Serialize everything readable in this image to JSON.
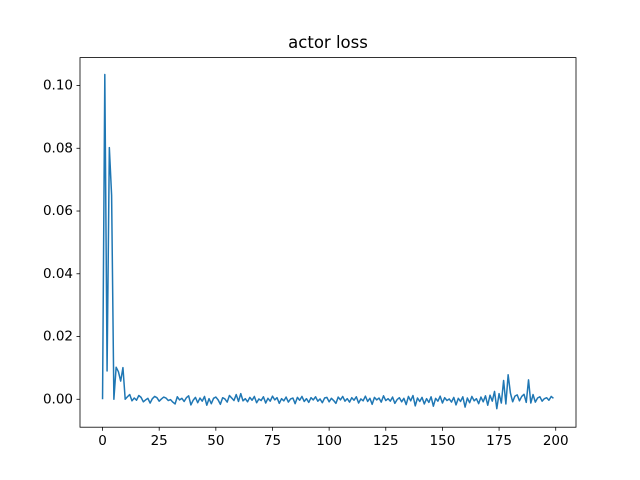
{
  "chart_data": {
    "type": "line",
    "title": "actor loss",
    "x": [
      0,
      1,
      2,
      3,
      4,
      5,
      6,
      7,
      8,
      9,
      10,
      11,
      12,
      13,
      14,
      15,
      16,
      17,
      18,
      19,
      20,
      21,
      22,
      23,
      24,
      25,
      26,
      27,
      28,
      29,
      30,
      31,
      32,
      33,
      34,
      35,
      36,
      37,
      38,
      39,
      40,
      41,
      42,
      43,
      44,
      45,
      46,
      47,
      48,
      49,
      50,
      51,
      52,
      53,
      54,
      55,
      56,
      57,
      58,
      59,
      60,
      61,
      62,
      63,
      64,
      65,
      66,
      67,
      68,
      69,
      70,
      71,
      72,
      73,
      74,
      75,
      76,
      77,
      78,
      79,
      80,
      81,
      82,
      83,
      84,
      85,
      86,
      87,
      88,
      89,
      90,
      91,
      92,
      93,
      94,
      95,
      96,
      97,
      98,
      99,
      100,
      101,
      102,
      103,
      104,
      105,
      106,
      107,
      108,
      109,
      110,
      111,
      112,
      113,
      114,
      115,
      116,
      117,
      118,
      119,
      120,
      121,
      122,
      123,
      124,
      125,
      126,
      127,
      128,
      129,
      130,
      131,
      132,
      133,
      134,
      135,
      136,
      137,
      138,
      139,
      140,
      141,
      142,
      143,
      144,
      145,
      146,
      147,
      148,
      149,
      150,
      151,
      152,
      153,
      154,
      155,
      156,
      157,
      158,
      159,
      160,
      161,
      162,
      163,
      164,
      165,
      166,
      167,
      168,
      169,
      170,
      171,
      172,
      173,
      174,
      175,
      176,
      177,
      178,
      179,
      180,
      181,
      182,
      183,
      184,
      185,
      186,
      187,
      188,
      189,
      190,
      191,
      192,
      193,
      194,
      195,
      196,
      197,
      198,
      199
    ],
    "series": [
      {
        "color": "#1f77b4",
        "values": [
          0,
          0.1035,
          0.009,
          0.0802,
          0.065,
          0.0,
          0.0102,
          0.0088,
          0.0058,
          0.0101,
          0.0,
          0.0008,
          0.0015,
          -0.0005,
          0.0004,
          -0.0003,
          0.0012,
          0.0006,
          -0.0008,
          -0.0002,
          0.0003,
          -0.0012,
          0.0002,
          0.0009,
          0.0005,
          -0.0006,
          0.0001,
          0.0007,
          0.0004,
          -0.0004,
          -0.0001,
          -0.0009,
          -0.0015,
          0.0008,
          -0.0002,
          0.0003,
          -0.0007,
          0.0005,
          0.0011,
          -0.0018,
          -0.0003,
          0.0006,
          -0.0011,
          0.0004,
          -0.0006,
          0.0009,
          -0.0019,
          0.0002,
          -0.0014,
          0.0003,
          0.0007,
          -0.0002,
          -0.0016,
          0.0005,
          0.0001,
          -0.0009,
          0.0012,
          0.0004,
          -0.0004,
          0.0015,
          -0.0007,
          0.0018,
          -0.0005,
          0.0002,
          -0.0008,
          0.0006,
          -0.0003,
          0.0009,
          -0.0011,
          0.0001,
          -0.0004,
          0.0008,
          -0.0012,
          0.0003,
          -0.0006,
          0.001,
          -0.0002,
          0.0005,
          -0.0013,
          0.0002,
          -0.0005,
          0.0007,
          -0.0009,
          0.0001,
          0.0004,
          -0.0014,
          0.0006,
          -0.0003,
          0.0009,
          -0.0007,
          0.0002,
          -0.001,
          0.0005,
          -0.0002,
          0.0008,
          -0.0006,
          0.0001,
          -0.0011,
          0.0004,
          0.0006,
          -0.0008,
          0.0003,
          -0.0004,
          -0.0013,
          0.0007,
          -0.0002,
          0.0009,
          -0.0006,
          0.0002,
          -0.0009,
          0.0005,
          -0.0003,
          0.0008,
          -0.0012,
          0.0001,
          -0.0005,
          0.001,
          -0.0007,
          0.0003,
          -0.0016,
          0.0006,
          -0.0002,
          0.0004,
          -0.0009,
          0.0011,
          -0.0004,
          0.0002,
          -0.0006,
          0.0007,
          -0.0013,
          -0.0001,
          0.0005,
          -0.0008,
          0.0003,
          -0.0017,
          0.0009,
          -0.0005,
          0.0012,
          -0.0021,
          0.0004,
          -0.0007,
          0.0006,
          -0.0015,
          0.0002,
          -0.001,
          0.0008,
          -0.0022,
          0.0003,
          -0.0006,
          0.001,
          -0.0012,
          0.0005,
          -0.0004,
          0.0001,
          -0.0009,
          0.0006,
          -0.0018,
          0.0003,
          -0.0007,
          0.0008,
          -0.0025,
          0.0004,
          -0.0011,
          0.0009,
          -0.0005,
          0.0002,
          -0.0014,
          0.0007,
          -0.0008,
          0.0011,
          -0.0019,
          0.0013,
          -0.0006,
          0.0025,
          -0.003,
          0.0018,
          -0.0012,
          0.006,
          -0.0015,
          0.0078,
          0.002,
          -0.0008,
          0.001,
          0.0014,
          -0.0005,
          0.0009,
          0.0016,
          -0.001,
          0.0062,
          -0.0012,
          0.0015,
          -0.0009,
          0.0004,
          0.0008,
          -0.0006,
          0.0002,
          0.0005,
          -0.0003,
          0.0009,
          0.0003
        ]
      }
    ],
    "xlim": [
      -9.95,
      208.95
    ],
    "xticks": [
      0,
      25,
      50,
      75,
      100,
      125,
      150,
      175,
      200
    ],
    "ylim": [
      -0.0089,
      0.1089
    ],
    "yticks": [
      {
        "value": 0,
        "label": "0.00"
      },
      {
        "value": 0.02,
        "label": "0.02"
      },
      {
        "value": 0.04,
        "label": "0.04"
      },
      {
        "value": 0.06,
        "label": "0.06"
      },
      {
        "value": 0.08,
        "label": "0.08"
      },
      {
        "value": 0.1,
        "label": "0.10"
      }
    ],
    "grid": false
  }
}
